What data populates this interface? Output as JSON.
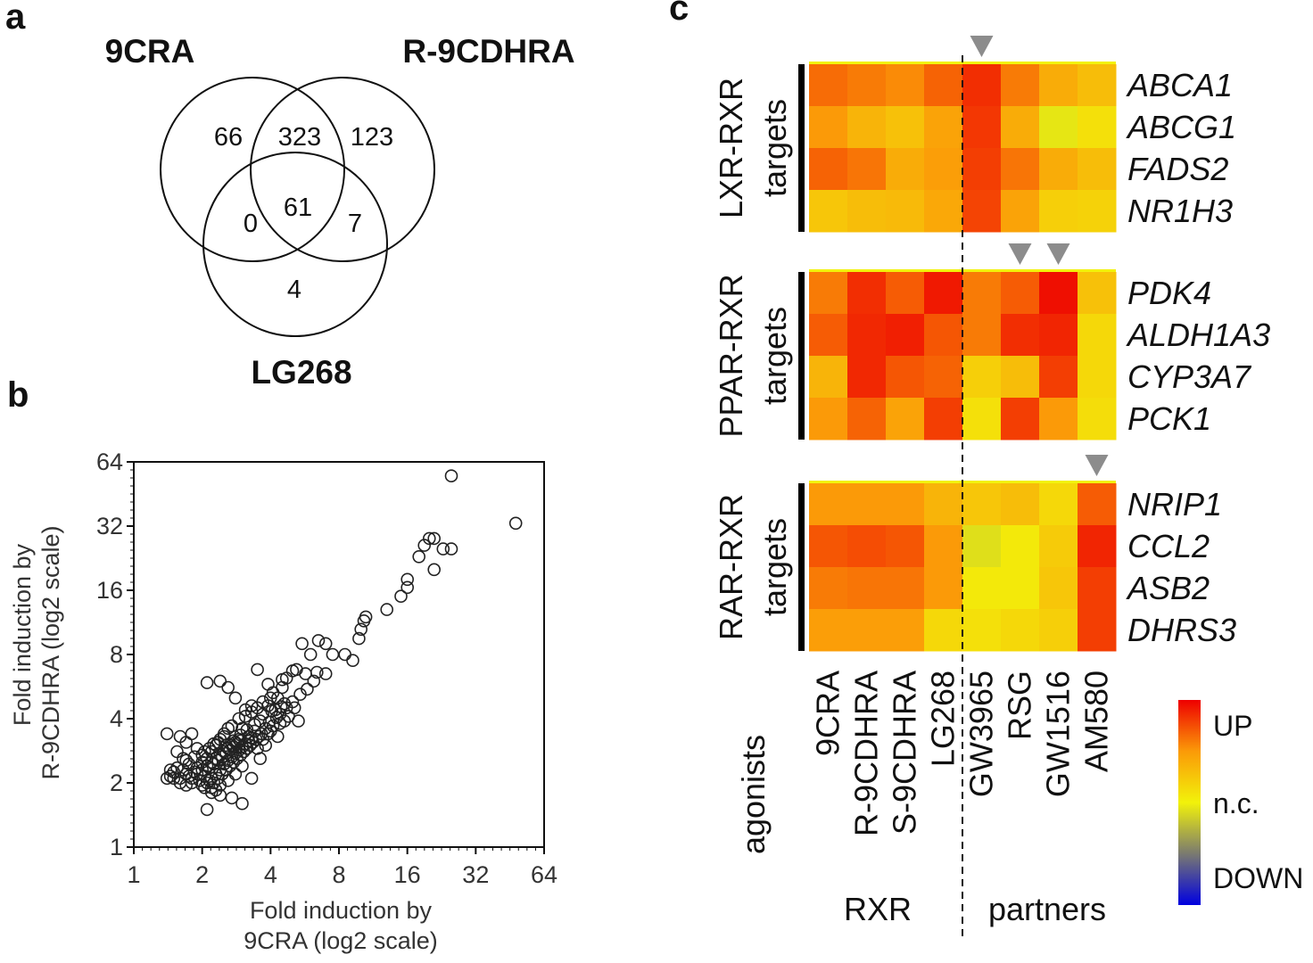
{
  "panels": {
    "a": {
      "letter": "a",
      "sets": [
        "9CRA",
        "R-9CDHRA",
        "LG268"
      ],
      "regions": {
        "only_9cra": "66",
        "9cra_r9cdhra": "323",
        "only_r9cdhra": "123",
        "9cra_lg268": "0",
        "all_three": "61",
        "r9cdhra_lg268": "7",
        "only_lg268": "4"
      }
    },
    "b": {
      "letter": "b",
      "xlabel_lines": [
        "Fold induction by",
        "9CRA (log2 scale)"
      ],
      "ylabel_lines": [
        "Fold induction by",
        "R-9CDHRA (log2 scale)"
      ]
    },
    "c": {
      "letter": "c",
      "group_label_line2": "targets",
      "axis_group_labels": [
        "RXR",
        "partners"
      ],
      "agonists_label": "agonists",
      "legend": {
        "up": "UP",
        "nc": "n.c.",
        "down": "DOWN"
      }
    }
  },
  "chart_data": [
    {
      "type": "scatter",
      "panel": "b",
      "title": "",
      "xlabel": "Fold induction by 9CRA (log2 scale)",
      "ylabel": "Fold induction by R-9CDHRA (log2 scale)",
      "scale": "log2",
      "xlim": [
        1,
        64
      ],
      "ylim": [
        1,
        64
      ],
      "xticks": [
        "1",
        "2",
        "4",
        "8",
        "16",
        "32",
        "64"
      ],
      "yticks": [
        "1",
        "2",
        "4",
        "8",
        "16",
        "32",
        "64"
      ],
      "marker": "open-circle",
      "points": [
        [
          25,
          55
        ],
        [
          48,
          33
        ],
        [
          20,
          28
        ],
        [
          21,
          28
        ],
        [
          19,
          26
        ],
        [
          23,
          25
        ],
        [
          25,
          25
        ],
        [
          18,
          23
        ],
        [
          21,
          20
        ],
        [
          16,
          18
        ],
        [
          16,
          16.5
        ],
        [
          15,
          15
        ],
        [
          13,
          13
        ],
        [
          10.5,
          12
        ],
        [
          10.3,
          11.5
        ],
        [
          10,
          10.5
        ],
        [
          9.8,
          9.5
        ],
        [
          8.5,
          8
        ],
        [
          9.2,
          7.5
        ],
        [
          7.5,
          8
        ],
        [
          7,
          9
        ],
        [
          6.5,
          9.3
        ],
        [
          5.5,
          9
        ],
        [
          6,
          8
        ],
        [
          5.2,
          6.8
        ],
        [
          7,
          6.5
        ],
        [
          6.4,
          6.6
        ],
        [
          5.7,
          6.5
        ],
        [
          5,
          6.7
        ],
        [
          4.7,
          6.2
        ],
        [
          4.5,
          5.6
        ],
        [
          4.3,
          5
        ],
        [
          4,
          5
        ],
        [
          3.7,
          4.8
        ],
        [
          3.5,
          4.5
        ],
        [
          3.3,
          4.3
        ],
        [
          3.1,
          4.1
        ],
        [
          3.9,
          4.6
        ],
        [
          4.2,
          4.4
        ],
        [
          4.6,
          4.7
        ],
        [
          4.8,
          4.1
        ],
        [
          5.1,
          4.5
        ],
        [
          5.3,
          3.9
        ],
        [
          4.4,
          3.8
        ],
        [
          3.8,
          3.6
        ],
        [
          3.6,
          3.9
        ],
        [
          3.4,
          3.5
        ],
        [
          3.2,
          3.3
        ],
        [
          3,
          3.6
        ],
        [
          2.9,
          3.2
        ],
        [
          2.8,
          3.1
        ],
        [
          2.7,
          3
        ],
        [
          2.6,
          2.9
        ],
        [
          2.5,
          2.8
        ],
        [
          2.4,
          2.7
        ],
        [
          2.3,
          2.6
        ],
        [
          2.2,
          2.5
        ],
        [
          2.1,
          2.4
        ],
        [
          2,
          2.3
        ],
        [
          1.9,
          2.2
        ],
        [
          1.8,
          2.1
        ],
        [
          1.7,
          2.2
        ],
        [
          1.6,
          2.1
        ],
        [
          1.5,
          2.1
        ],
        [
          1.45,
          2.3
        ],
        [
          1.4,
          2.1
        ],
        [
          1.55,
          2.35
        ],
        [
          1.65,
          2.3
        ],
        [
          1.75,
          2.15
        ],
        [
          1.85,
          2.25
        ],
        [
          2.05,
          2.15
        ],
        [
          2.15,
          2.05
        ],
        [
          2.25,
          2.0
        ],
        [
          2.35,
          2.1
        ],
        [
          2.45,
          2.2
        ],
        [
          2.55,
          2.3
        ],
        [
          2.65,
          2.4
        ],
        [
          2.75,
          2.5
        ],
        [
          2.85,
          2.6
        ],
        [
          2.95,
          2.7
        ],
        [
          3.05,
          2.8
        ],
        [
          3.15,
          2.9
        ],
        [
          3.25,
          3.0
        ],
        [
          3.35,
          3.1
        ],
        [
          3.45,
          3.2
        ],
        [
          3.55,
          3.3
        ],
        [
          3.65,
          3.4
        ],
        [
          2.1,
          2.6
        ],
        [
          2.2,
          2.8
        ],
        [
          2.3,
          3.0
        ],
        [
          2.4,
          3.2
        ],
        [
          2.5,
          3.4
        ],
        [
          2.6,
          3.6
        ],
        [
          2.2,
          1.9
        ],
        [
          2.3,
          1.85
        ],
        [
          2.4,
          1.95
        ],
        [
          2.6,
          2.05
        ],
        [
          2.8,
          2.2
        ],
        [
          3.0,
          2.4
        ],
        [
          2.0,
          1.95
        ],
        [
          1.95,
          2.05
        ],
        [
          2.05,
          1.9
        ],
        [
          2.1,
          2.0
        ],
        [
          2.2,
          2.1
        ],
        [
          2.3,
          2.2
        ],
        [
          2.4,
          2.3
        ],
        [
          2.5,
          2.45
        ],
        [
          2.6,
          2.55
        ],
        [
          2.7,
          2.65
        ],
        [
          2.8,
          2.75
        ],
        [
          2.9,
          2.85
        ],
        [
          3.0,
          2.95
        ],
        [
          3.1,
          3.05
        ],
        [
          3.2,
          3.15
        ],
        [
          3.3,
          3.25
        ],
        [
          2.15,
          2.35
        ],
        [
          2.25,
          2.45
        ],
        [
          2.35,
          2.55
        ],
        [
          2.45,
          2.65
        ],
        [
          2.55,
          2.75
        ],
        [
          2.65,
          2.85
        ],
        [
          2.75,
          2.95
        ],
        [
          2.85,
          3.05
        ],
        [
          2.95,
          3.15
        ],
        [
          2.1,
          5.9
        ],
        [
          2.4,
          6
        ],
        [
          2.6,
          5.6
        ],
        [
          2.8,
          5.0
        ],
        [
          3.5,
          6.8
        ],
        [
          3.9,
          5.8
        ],
        [
          4.1,
          5.3
        ],
        [
          4.5,
          6.1
        ],
        [
          1.4,
          3.4
        ],
        [
          1.6,
          3.3
        ],
        [
          1.7,
          3.1
        ],
        [
          1.8,
          3.4
        ],
        [
          1.9,
          2.9
        ],
        [
          1.55,
          2.8
        ],
        [
          1.65,
          2.6
        ],
        [
          1.75,
          2.45
        ],
        [
          2.1,
          1.5
        ],
        [
          2.7,
          1.7
        ],
        [
          3.0,
          1.6
        ],
        [
          2.4,
          1.75
        ],
        [
          2.2,
          1.8
        ],
        [
          3.3,
          2.1
        ],
        [
          3.6,
          2.6
        ],
        [
          3.8,
          3.0
        ],
        [
          4.0,
          3.5
        ],
        [
          4.3,
          3.3
        ],
        [
          4.6,
          3.9
        ],
        [
          3.3,
          4.6
        ],
        [
          3.1,
          4.4
        ],
        [
          2.9,
          4.0
        ],
        [
          2.7,
          3.7
        ],
        [
          2.5,
          3.3
        ],
        [
          2.35,
          3.1
        ],
        [
          2.05,
          2.8
        ],
        [
          1.85,
          2.65
        ],
        [
          1.7,
          2.55
        ],
        [
          1.45,
          2.15
        ],
        [
          1.5,
          2.25
        ],
        [
          1.6,
          2.0
        ],
        [
          1.7,
          1.95
        ],
        [
          1.8,
          2.0
        ],
        [
          1.9,
          2.35
        ],
        [
          2.0,
          2.5
        ],
        [
          2.0,
          2.7
        ],
        [
          2.15,
          2.9
        ],
        [
          2.25,
          3.05
        ],
        [
          3.4,
          3.75
        ],
        [
          3.7,
          4.2
        ],
        [
          4.05,
          4.35
        ],
        [
          4.25,
          4.05
        ],
        [
          4.45,
          4.55
        ],
        [
          3.95,
          3.85
        ],
        [
          3.15,
          3.55
        ],
        [
          2.95,
          3.35
        ],
        [
          2.75,
          3.15
        ],
        [
          2.55,
          3.0
        ],
        [
          3.5,
          2.9
        ],
        [
          3.7,
          3.2
        ],
        [
          3.9,
          3.4
        ],
        [
          4.1,
          3.7
        ],
        [
          4.4,
          4.2
        ],
        [
          4.7,
          4.5
        ],
        [
          5.0,
          4.8
        ],
        [
          5.4,
          5.2
        ],
        [
          5.8,
          5.5
        ],
        [
          6.2,
          6.0
        ]
      ]
    },
    {
      "type": "heatmap",
      "panel": "c",
      "title": "",
      "color_scale": {
        "min": -1,
        "max": 1,
        "labels": [
          "DOWN",
          "n.c.",
          "UP"
        ],
        "colors": [
          "#0000e0",
          "#f2f20a",
          "#ee0000"
        ]
      },
      "columns": [
        "9CRA",
        "R-9CDHRA",
        "S-9CDHRA",
        "LG268",
        "GW3965",
        "RSG",
        "GW1516",
        "AM580"
      ],
      "column_groups": [
        {
          "name": "RXR",
          "columns": [
            "9CRA",
            "R-9CDHRA",
            "S-9CDHRA",
            "LG268"
          ]
        },
        {
          "name": "partners",
          "columns": [
            "GW3965",
            "RSG",
            "GW1516",
            "AM580"
          ]
        }
      ],
      "blocks": [
        {
          "name": "LXR-RXR",
          "marked_columns": [
            "GW3965"
          ],
          "rows": [
            "ABCA1",
            "ABCG1",
            "FADS2",
            "NR1H3"
          ],
          "values": [
            [
              0.65,
              0.6,
              0.55,
              0.68,
              0.85,
              0.6,
              0.4,
              0.3
            ],
            [
              0.5,
              0.35,
              0.28,
              0.45,
              0.82,
              0.4,
              -0.05,
              0.1
            ],
            [
              0.68,
              0.62,
              0.4,
              0.48,
              0.8,
              0.62,
              0.4,
              0.3
            ],
            [
              0.25,
              0.3,
              0.32,
              0.42,
              0.78,
              0.45,
              0.2,
              0.18
            ]
          ]
        },
        {
          "name": "PPAR-RXR",
          "marked_columns": [
            "RSG",
            "GW1516"
          ],
          "rows": [
            "PDK4",
            "ALDH1A3",
            "CYP3A7",
            "PCK1"
          ],
          "values": [
            [
              0.6,
              0.85,
              0.7,
              0.92,
              0.6,
              0.7,
              0.95,
              0.28
            ],
            [
              0.7,
              0.87,
              0.9,
              0.72,
              0.6,
              0.85,
              0.88,
              0.15
            ],
            [
              0.35,
              0.87,
              0.72,
              0.68,
              0.2,
              0.3,
              0.8,
              0.15
            ],
            [
              0.5,
              0.68,
              0.45,
              0.8,
              0.1,
              0.8,
              0.5,
              0.12
            ]
          ]
        },
        {
          "name": "RAR-RXR",
          "marked_columns": [
            "AM580"
          ],
          "rows": [
            "NRIP1",
            "CCL2",
            "ASB2",
            "DHRS3"
          ],
          "values": [
            [
              0.5,
              0.5,
              0.5,
              0.35,
              0.25,
              0.3,
              0.15,
              0.7
            ],
            [
              0.72,
              0.75,
              0.72,
              0.5,
              -0.08,
              0.05,
              0.22,
              0.88
            ],
            [
              0.6,
              0.62,
              0.62,
              0.5,
              0.05,
              0.05,
              0.25,
              0.8
            ],
            [
              0.48,
              0.48,
              0.48,
              0.15,
              0.1,
              0.15,
              0.2,
              0.8
            ]
          ]
        }
      ]
    }
  ]
}
